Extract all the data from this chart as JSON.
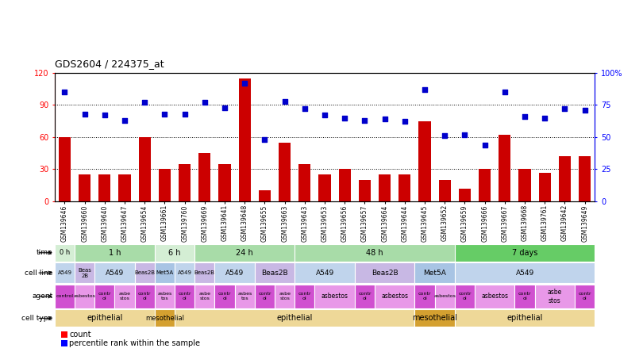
{
  "title": "GDS2604 / 224375_at",
  "samples": [
    "GSM139646",
    "GSM139660",
    "GSM139640",
    "GSM139647",
    "GSM139654",
    "GSM139661",
    "GSM139760",
    "GSM139669",
    "GSM139641",
    "GSM139648",
    "GSM139655",
    "GSM139663",
    "GSM139643",
    "GSM139653",
    "GSM139656",
    "GSM139657",
    "GSM139664",
    "GSM139644",
    "GSM139645",
    "GSM139652",
    "GSM139659",
    "GSM139666",
    "GSM139667",
    "GSM139668",
    "GSM139761",
    "GSM139642",
    "GSM139649"
  ],
  "counts": [
    60,
    25,
    25,
    25,
    60,
    30,
    35,
    45,
    35,
    115,
    10,
    55,
    35,
    25,
    30,
    20,
    25,
    25,
    75,
    20,
    12,
    30,
    62,
    30,
    27,
    42,
    42
  ],
  "percentiles": [
    85,
    68,
    67,
    63,
    77,
    68,
    68,
    77,
    73,
    92,
    48,
    78,
    72,
    67,
    65,
    63,
    64,
    62,
    87,
    51,
    52,
    44,
    85,
    66,
    65,
    72,
    71
  ],
  "time_spans": [
    {
      "label": "0 h",
      "start": 0,
      "end": 1,
      "color": "#d4eed4"
    },
    {
      "label": "1 h",
      "start": 1,
      "end": 5,
      "color": "#a8dca8"
    },
    {
      "label": "6 h",
      "start": 5,
      "end": 7,
      "color": "#d4eed4"
    },
    {
      "label": "24 h",
      "start": 7,
      "end": 12,
      "color": "#a8dca8"
    },
    {
      "label": "48 h",
      "start": 12,
      "end": 20,
      "color": "#a8dca8"
    },
    {
      "label": "7 days",
      "start": 20,
      "end": 27,
      "color": "#66cc66"
    }
  ],
  "cell_line_spans": [
    {
      "label": "A549",
      "start": 0,
      "end": 1,
      "color": "#c0d4ec"
    },
    {
      "label": "Beas\n2B",
      "start": 1,
      "end": 2,
      "color": "#c8b8e4"
    },
    {
      "label": "A549",
      "start": 2,
      "end": 4,
      "color": "#c0d4ec"
    },
    {
      "label": "Beas2B",
      "start": 4,
      "end": 5,
      "color": "#c8b8e4"
    },
    {
      "label": "Met5A",
      "start": 5,
      "end": 6,
      "color": "#a8c4e4"
    },
    {
      "label": "A549",
      "start": 6,
      "end": 7,
      "color": "#c0d4ec"
    },
    {
      "label": "Beas2B",
      "start": 7,
      "end": 8,
      "color": "#c8b8e4"
    },
    {
      "label": "A549",
      "start": 8,
      "end": 10,
      "color": "#c0d4ec"
    },
    {
      "label": "Beas2B",
      "start": 10,
      "end": 12,
      "color": "#c8b8e4"
    },
    {
      "label": "A549",
      "start": 12,
      "end": 15,
      "color": "#c0d4ec"
    },
    {
      "label": "Beas2B",
      "start": 15,
      "end": 18,
      "color": "#c8b8e4"
    },
    {
      "label": "Met5A",
      "start": 18,
      "end": 20,
      "color": "#a8c4e4"
    },
    {
      "label": "A549",
      "start": 20,
      "end": 27,
      "color": "#c0d4ec"
    }
  ],
  "agent_spans": [
    {
      "label": "control",
      "start": 0,
      "end": 1,
      "color": "#d050d0"
    },
    {
      "label": "asbestos",
      "start": 1,
      "end": 2,
      "color": "#e898e8"
    },
    {
      "label": "contr\nol",
      "start": 2,
      "end": 3,
      "color": "#d050d0"
    },
    {
      "label": "asbe\nstos",
      "start": 3,
      "end": 4,
      "color": "#e898e8"
    },
    {
      "label": "contr\nol",
      "start": 4,
      "end": 5,
      "color": "#d050d0"
    },
    {
      "label": "asbes\ntos",
      "start": 5,
      "end": 6,
      "color": "#e898e8"
    },
    {
      "label": "contr\nol",
      "start": 6,
      "end": 7,
      "color": "#d050d0"
    },
    {
      "label": "asbe\nstos",
      "start": 7,
      "end": 8,
      "color": "#e898e8"
    },
    {
      "label": "contr\nol",
      "start": 8,
      "end": 9,
      "color": "#d050d0"
    },
    {
      "label": "asbes\ntos",
      "start": 9,
      "end": 10,
      "color": "#e898e8"
    },
    {
      "label": "contr\nol",
      "start": 10,
      "end": 11,
      "color": "#d050d0"
    },
    {
      "label": "asbe\nstos",
      "start": 11,
      "end": 12,
      "color": "#e898e8"
    },
    {
      "label": "contr\nol",
      "start": 12,
      "end": 13,
      "color": "#d050d0"
    },
    {
      "label": "asbestos",
      "start": 13,
      "end": 15,
      "color": "#e898e8"
    },
    {
      "label": "contr\nol",
      "start": 15,
      "end": 16,
      "color": "#d050d0"
    },
    {
      "label": "asbestos",
      "start": 16,
      "end": 18,
      "color": "#e898e8"
    },
    {
      "label": "contr\nol",
      "start": 18,
      "end": 19,
      "color": "#d050d0"
    },
    {
      "label": "asbestos",
      "start": 19,
      "end": 20,
      "color": "#e898e8"
    },
    {
      "label": "contr\nol",
      "start": 20,
      "end": 21,
      "color": "#d050d0"
    },
    {
      "label": "asbestos",
      "start": 21,
      "end": 23,
      "color": "#e898e8"
    },
    {
      "label": "contr\nol",
      "start": 23,
      "end": 24,
      "color": "#d050d0"
    },
    {
      "label": "asbe\nstos",
      "start": 24,
      "end": 26,
      "color": "#e898e8"
    },
    {
      "label": "contr\nol",
      "start": 26,
      "end": 27,
      "color": "#d050d0"
    }
  ],
  "cell_type_spans": [
    {
      "label": "epithelial",
      "start": 0,
      "end": 5,
      "color": "#eed898"
    },
    {
      "label": "mesothelial",
      "start": 5,
      "end": 6,
      "color": "#d4a030"
    },
    {
      "label": "epithelial",
      "start": 6,
      "end": 18,
      "color": "#eed898"
    },
    {
      "label": "mesothelial",
      "start": 18,
      "end": 20,
      "color": "#d4a030"
    },
    {
      "label": "epithelial",
      "start": 20,
      "end": 27,
      "color": "#eed898"
    }
  ],
  "bar_color": "#cc0000",
  "dot_color": "#0000cc",
  "left_ylim": [
    0,
    120
  ],
  "right_ylim": [
    0,
    100
  ],
  "left_yticks": [
    0,
    30,
    60,
    90,
    120
  ],
  "right_yticks": [
    0,
    25,
    50,
    75,
    100
  ],
  "right_yticklabels": [
    "0",
    "25",
    "50",
    "75",
    "100%"
  ],
  "background_color": "#ffffff"
}
